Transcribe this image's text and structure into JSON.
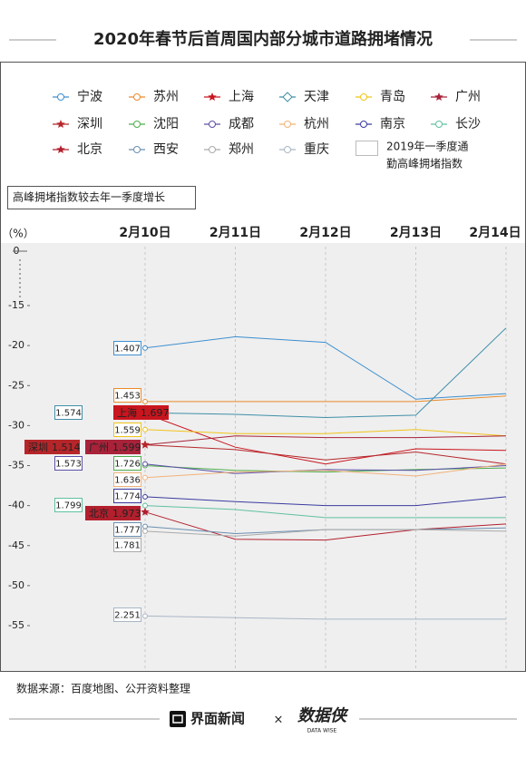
{
  "chart_data": {
    "type": "line",
    "title": "2020年春节后首周国内部分城市道路拥堵情况",
    "subtitle": "高峰拥堵指数较去年一季度增长",
    "y_label": "（%）",
    "categories": [
      "2月10日",
      "2月11日",
      "2月12日",
      "2月13日",
      "2月14日"
    ],
    "ylim": [
      -60,
      0
    ],
    "axis_break": [
      -15,
      0
    ],
    "yticks": [
      0,
      -15,
      -20,
      -25,
      -30,
      -35,
      -40,
      -45,
      -50,
      -55
    ],
    "grid": false,
    "legend_box_lines": [
      "2019年一季度通",
      "勤高峰拥堵指数"
    ],
    "series": [
      {
        "name": "宁波",
        "color": "#3d8fcf",
        "marker": "circle",
        "index_2019": 1.407,
        "highlight": false,
        "values": [
          -20.3,
          -18.9,
          -19.6,
          -26.7,
          -26.0
        ]
      },
      {
        "name": "苏州",
        "color": "#e98b2a",
        "marker": "circle",
        "index_2019": 1.453,
        "highlight": false,
        "values": [
          -27.0,
          -27.0,
          -27.0,
          -27.0,
          -26.3
        ]
      },
      {
        "name": "上海",
        "color": "#c9151e",
        "marker": "star",
        "index_2019": 1.697,
        "highlight": true,
        "values": [
          -28.5,
          -32.7,
          -34.8,
          -32.9,
          -33.1
        ]
      },
      {
        "name": "天津",
        "color": "#3f8fa8",
        "marker": "diamond",
        "index_2019": 1.574,
        "highlight": false,
        "values": [
          -28.4,
          -28.6,
          -29.0,
          -28.7,
          -17.8
        ]
      },
      {
        "name": "青岛",
        "color": "#f0c419",
        "marker": "circle",
        "index_2019": 1.559,
        "highlight": false,
        "values": [
          -30.5,
          -31.0,
          -31.0,
          -30.5,
          -31.3
        ]
      },
      {
        "name": "广州",
        "color": "#a8233a",
        "marker": "star",
        "index_2019": 1.599,
        "highlight": true,
        "values": [
          -32.4,
          -31.3,
          -31.5,
          -31.5,
          -31.3
        ]
      },
      {
        "name": "深圳",
        "color": "#b5262a",
        "marker": "star",
        "index_2019": 1.514,
        "highlight": true,
        "values": [
          -32.4,
          -33.0,
          -34.3,
          -33.3,
          -34.8
        ]
      },
      {
        "name": "沈阳",
        "color": "#4cae4c",
        "marker": "circle",
        "index_2019": 1.726,
        "highlight": false,
        "values": [
          -35.0,
          -35.6,
          -35.8,
          -35.5,
          -35.3
        ]
      },
      {
        "name": "成都",
        "color": "#5a4fa8",
        "marker": "circle",
        "index_2019": 1.573,
        "highlight": false,
        "values": [
          -34.8,
          -36.0,
          -35.5,
          -35.6,
          -35.0
        ]
      },
      {
        "name": "杭州",
        "color": "#f2b27a",
        "marker": "circle",
        "index_2019": 1.636,
        "highlight": false,
        "values": [
          -36.5,
          -35.8,
          -35.6,
          -36.3,
          -34.8
        ]
      },
      {
        "name": "南京",
        "color": "#3a3aa0",
        "marker": "circle",
        "index_2019": 1.774,
        "highlight": false,
        "values": [
          -38.9,
          -39.5,
          -40.0,
          -40.0,
          -38.9
        ]
      },
      {
        "name": "长沙",
        "color": "#5fc0a0",
        "marker": "circle",
        "index_2019": 1.799,
        "highlight": false,
        "values": [
          -40.0,
          -40.5,
          -41.5,
          -41.5,
          -41.5
        ]
      },
      {
        "name": "北京",
        "color": "#b21f2d",
        "marker": "star",
        "index_2019": 1.973,
        "highlight": true,
        "values": [
          -40.8,
          -44.2,
          -44.3,
          -43.0,
          -42.3
        ]
      },
      {
        "name": "西安",
        "color": "#6b8fb0",
        "marker": "circle",
        "index_2019": 1.777,
        "highlight": false,
        "values": [
          -42.6,
          -43.5,
          -43.0,
          -43.0,
          -42.8
        ]
      },
      {
        "name": "郑州",
        "color": "#aaaaaa",
        "marker": "circle",
        "index_2019": 1.781,
        "highlight": false,
        "values": [
          -43.2,
          -43.8,
          -43.0,
          -43.0,
          -43.2
        ]
      },
      {
        "name": "重庆",
        "color": "#a9b6c6",
        "marker": "circle",
        "index_2019": 2.251,
        "highlight": false,
        "values": [
          -53.8,
          -54.0,
          -54.2,
          -54.2,
          -54.2
        ]
      }
    ],
    "source": "数据来源：百度地图、公开资料整理",
    "brand": "界面新闻",
    "brand_sep": "×",
    "brand2": "数据侠",
    "brand2_sub": "DATA WISE"
  }
}
